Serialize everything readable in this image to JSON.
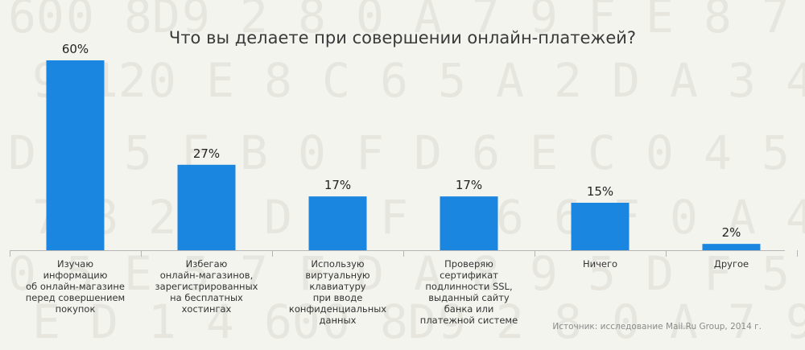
{
  "chart_data": {
    "type": "bar",
    "title": "Что вы делаете при совершении онлайн-платежей?",
    "categories": [
      [
        "Изучаю",
        "информацию",
        "об онлайн-магазине",
        "перед совершением",
        "покупок"
      ],
      [
        "Избегаю",
        "онлайн-магазинов,",
        "зарегистрированных",
        "на бесплатных",
        "хостингах"
      ],
      [
        "Использую",
        "виртуальную",
        "клавиатуру",
        "при вводе",
        "конфиденциальных",
        "данных"
      ],
      [
        "Проверяю",
        "сертификат",
        "подлинности SSL,",
        "выданный сайту",
        "банка или",
        "платежной системе"
      ],
      [
        "Ничего"
      ],
      [
        "Другое"
      ]
    ],
    "values": [
      60,
      27,
      17,
      17,
      15,
      2
    ],
    "value_labels": [
      "60%",
      "27%",
      "17%",
      "17%",
      "15%",
      "2%"
    ],
    "ylim": [
      0,
      60
    ],
    "grid": false,
    "bar_color": "#1a86e0"
  },
  "source": "Источник: исследование Mail.Ru Group, 2014 г.",
  "background_glyphs": "60 0 8D 9 2 8 0 A 7 9 F E 8 7 9 12 0 E 8 C 6 5 A 2 D A 3 4 D 3 5 E B 0 F D 6 E C 0 4 5 7 8 2 1 D A F 9 6 6 F 0 A 4 0 5 E 5 7 F D A 8 9 5 D F 5 E D 1 4"
}
